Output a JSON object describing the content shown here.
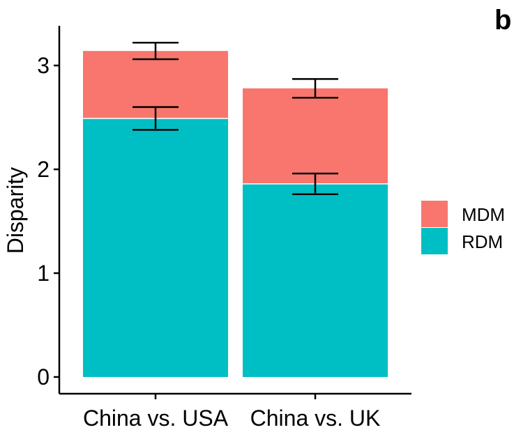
{
  "panel_label": "b",
  "chart_data": {
    "type": "bar",
    "stacked": true,
    "categories": [
      "China vs. USA",
      "China vs. UK"
    ],
    "series": [
      {
        "name": "RDM",
        "color": "#00BFC4",
        "values": [
          2.49,
          1.86
        ],
        "error_low": [
          2.38,
          1.76
        ],
        "error_high": [
          2.6,
          1.96
        ]
      },
      {
        "name": "MDM",
        "color": "#F8766D",
        "values": [
          0.65,
          0.92
        ],
        "error_low": [
          3.06,
          2.69
        ],
        "error_high": [
          3.22,
          2.87
        ]
      }
    ],
    "title": "",
    "xlabel": "",
    "ylabel": "Disparity",
    "ylim": [
      0,
      3.3
    ],
    "yticks": [
      "0",
      "1",
      "2",
      "3"
    ],
    "legend": {
      "position": "right",
      "entries": [
        "MDM",
        "RDM"
      ]
    },
    "grid": false
  }
}
